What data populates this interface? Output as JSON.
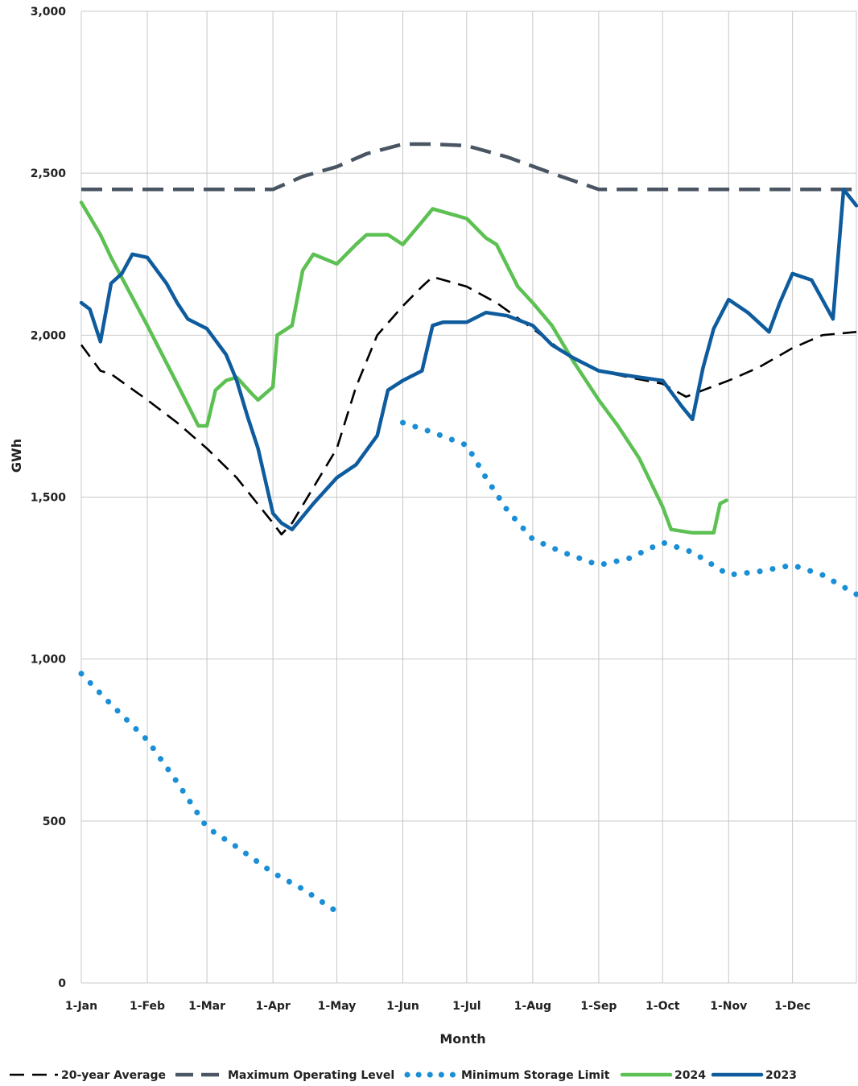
{
  "chart_data": {
    "type": "line",
    "xlabel": "Month",
    "ylabel": "GWh",
    "ylim": [
      0,
      3000
    ],
    "y_ticks": [
      "0",
      "500",
      "1,000",
      "1,500",
      "2,000",
      "2,500",
      "3,000"
    ],
    "x_ticks": [
      "1-Jan",
      "1-Feb",
      "1-Mar",
      "1-Apr",
      "1-May",
      "1-Jun",
      "1-Jul",
      "1-Aug",
      "1-Sep",
      "1-Oct",
      "1-Nov",
      "1-Dec"
    ],
    "grid": true,
    "legend_position": "bottom",
    "series": [
      {
        "name": "20-year Average",
        "color": "#000000",
        "style": "dashed",
        "points": [
          [
            "01-01",
            1970
          ],
          [
            "01-10",
            1890
          ],
          [
            "01-15",
            1880
          ],
          [
            "02-01",
            1800
          ],
          [
            "02-15",
            1730
          ],
          [
            "03-01",
            1650
          ],
          [
            "03-15",
            1560
          ],
          [
            "04-01",
            1420
          ],
          [
            "04-05",
            1385
          ],
          [
            "04-10",
            1420
          ],
          [
            "04-20",
            1530
          ],
          [
            "05-01",
            1650
          ],
          [
            "05-10",
            1840
          ],
          [
            "05-20",
            2000
          ],
          [
            "06-01",
            2090
          ],
          [
            "06-10",
            2150
          ],
          [
            "06-15",
            2180
          ],
          [
            "07-01",
            2150
          ],
          [
            "07-15",
            2100
          ],
          [
            "08-01",
            2020
          ],
          [
            "08-15",
            1950
          ],
          [
            "09-01",
            1890
          ],
          [
            "09-15",
            1870
          ],
          [
            "10-01",
            1850
          ],
          [
            "10-12",
            1810
          ],
          [
            "10-20",
            1830
          ],
          [
            "11-01",
            1860
          ],
          [
            "11-15",
            1900
          ],
          [
            "12-01",
            1960
          ],
          [
            "12-15",
            2000
          ],
          [
            "12-31",
            2010
          ]
        ]
      },
      {
        "name": "Maximum Operating Level",
        "color": "#4a5563",
        "style": "dashed",
        "points": [
          [
            "01-01",
            2450
          ],
          [
            "04-01",
            2450
          ],
          [
            "04-15",
            2490
          ],
          [
            "05-01",
            2520
          ],
          [
            "05-15",
            2560
          ],
          [
            "06-01",
            2590
          ],
          [
            "06-15",
            2590
          ],
          [
            "07-01",
            2585
          ],
          [
            "07-20",
            2550
          ],
          [
            "08-10",
            2500
          ],
          [
            "09-01",
            2450
          ],
          [
            "12-31",
            2450
          ]
        ]
      },
      {
        "name": "Minimum Storage Limit",
        "color": "#1a8fd6",
        "style": "dotted",
        "points": [
          [
            "01-01",
            955
          ],
          [
            "01-15",
            860
          ],
          [
            "02-01",
            750
          ],
          [
            "02-15",
            620
          ],
          [
            "03-01",
            480
          ],
          [
            "03-15",
            420
          ],
          [
            "04-01",
            340
          ],
          [
            "04-15",
            290
          ],
          [
            "05-01",
            220
          ],
          null,
          [
            "06-01",
            1730
          ],
          [
            "06-15",
            1700
          ],
          [
            "07-01",
            1660
          ],
          [
            "07-10",
            1560
          ],
          [
            "07-20",
            1460
          ],
          [
            "08-01",
            1370
          ],
          [
            "08-15",
            1330
          ],
          [
            "09-01",
            1290
          ],
          [
            "09-15",
            1310
          ],
          [
            "10-01",
            1360
          ],
          [
            "10-15",
            1330
          ],
          [
            "11-01",
            1260
          ],
          [
            "11-15",
            1270
          ],
          [
            "12-01",
            1290
          ],
          [
            "12-15",
            1260
          ],
          [
            "12-31",
            1200
          ]
        ]
      },
      {
        "name": "2024",
        "color": "#5cc152",
        "style": "solid",
        "points": [
          [
            "01-01",
            2410
          ],
          [
            "01-10",
            2310
          ],
          [
            "01-15",
            2240
          ],
          [
            "02-01",
            2030
          ],
          [
            "02-15",
            1850
          ],
          [
            "02-25",
            1720
          ],
          [
            "03-01",
            1720
          ],
          [
            "03-05",
            1830
          ],
          [
            "03-10",
            1860
          ],
          [
            "03-15",
            1870
          ],
          [
            "03-22",
            1820
          ],
          [
            "03-25",
            1800
          ],
          [
            "04-01",
            1840
          ],
          [
            "04-03",
            2000
          ],
          [
            "04-10",
            2030
          ],
          [
            "04-15",
            2200
          ],
          [
            "04-20",
            2250
          ],
          [
            "05-01",
            2220
          ],
          [
            "05-10",
            2280
          ],
          [
            "05-15",
            2310
          ],
          [
            "05-25",
            2310
          ],
          [
            "06-01",
            2280
          ],
          [
            "06-10",
            2350
          ],
          [
            "06-15",
            2390
          ],
          [
            "07-01",
            2360
          ],
          [
            "07-10",
            2300
          ],
          [
            "07-15",
            2280
          ],
          [
            "07-25",
            2150
          ],
          [
            "08-01",
            2100
          ],
          [
            "08-10",
            2030
          ],
          [
            "08-20",
            1920
          ],
          [
            "09-01",
            1800
          ],
          [
            "09-10",
            1720
          ],
          [
            "09-20",
            1620
          ],
          [
            "10-01",
            1470
          ],
          [
            "10-05",
            1400
          ],
          [
            "10-15",
            1390
          ],
          [
            "10-25",
            1390
          ],
          [
            "10-28",
            1480
          ],
          [
            "10-31",
            1490
          ]
        ]
      },
      {
        "name": "2023",
        "color": "#0e5c9e",
        "style": "solid",
        "points": [
          [
            "01-01",
            2100
          ],
          [
            "01-05",
            2080
          ],
          [
            "01-10",
            1980
          ],
          [
            "01-15",
            2160
          ],
          [
            "01-20",
            2190
          ],
          [
            "01-25",
            2250
          ],
          [
            "02-01",
            2240
          ],
          [
            "02-10",
            2160
          ],
          [
            "02-15",
            2100
          ],
          [
            "02-20",
            2050
          ],
          [
            "03-01",
            2020
          ],
          [
            "03-10",
            1940
          ],
          [
            "03-15",
            1860
          ],
          [
            "03-20",
            1750
          ],
          [
            "03-25",
            1650
          ],
          [
            "04-01",
            1450
          ],
          [
            "04-05",
            1420
          ],
          [
            "04-10",
            1400
          ],
          [
            "04-20",
            1480
          ],
          [
            "05-01",
            1560
          ],
          [
            "05-10",
            1600
          ],
          [
            "05-20",
            1690
          ],
          [
            "05-25",
            1830
          ],
          [
            "06-01",
            1860
          ],
          [
            "06-10",
            1890
          ],
          [
            "06-15",
            2030
          ],
          [
            "06-20",
            2040
          ],
          [
            "07-01",
            2040
          ],
          [
            "07-10",
            2070
          ],
          [
            "07-20",
            2060
          ],
          [
            "08-01",
            2030
          ],
          [
            "08-10",
            1970
          ],
          [
            "08-20",
            1930
          ],
          [
            "09-01",
            1890
          ],
          [
            "09-10",
            1880
          ],
          [
            "09-20",
            1870
          ],
          [
            "10-01",
            1860
          ],
          [
            "10-10",
            1780
          ],
          [
            "10-15",
            1740
          ],
          [
            "10-20",
            1900
          ],
          [
            "10-25",
            2020
          ],
          [
            "11-01",
            2110
          ],
          [
            "11-10",
            2070
          ],
          [
            "11-20",
            2010
          ],
          [
            "11-25",
            2100
          ],
          [
            "12-01",
            2190
          ],
          [
            "12-10",
            2170
          ],
          [
            "12-15",
            2110
          ],
          [
            "12-20",
            2050
          ],
          [
            "12-25",
            2450
          ],
          [
            "12-31",
            2400
          ]
        ]
      }
    ]
  }
}
